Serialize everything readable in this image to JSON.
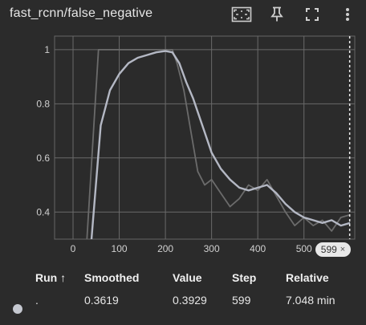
{
  "header": {
    "title": "fast_rcnn/false_negative",
    "icons": [
      "fit-domain-icon",
      "pin-icon",
      "fullscreen-icon",
      "more-vert-icon"
    ]
  },
  "chart_data": {
    "type": "line",
    "x_ticks": [
      0,
      100,
      200,
      300,
      400,
      500
    ],
    "y_ticks": [
      0.4,
      0.6,
      0.8,
      1
    ],
    "y_tick_labels": [
      "0.4",
      "0.6",
      "0.8",
      "1"
    ],
    "xlim": [
      -40,
      610
    ],
    "ylim": [
      0.3,
      1.05
    ],
    "grid": true,
    "series": [
      {
        "color": "#6b6b6b",
        "role": "raw",
        "x": [
          30,
          55,
          80,
          120,
          160,
          200,
          215,
          225,
          240,
          255,
          270,
          285,
          300,
          320,
          340,
          360,
          380,
          400,
          420,
          440,
          460,
          480,
          500,
          520,
          540,
          560,
          580,
          600
        ],
        "y": [
          0.3,
          1.0,
          1.0,
          1.0,
          1.0,
          1.0,
          1.0,
          0.95,
          0.85,
          0.7,
          0.55,
          0.5,
          0.52,
          0.47,
          0.42,
          0.45,
          0.5,
          0.48,
          0.52,
          0.46,
          0.4,
          0.35,
          0.38,
          0.35,
          0.37,
          0.33,
          0.38,
          0.39
        ]
      },
      {
        "color": "#b4b8c4",
        "role": "smoothed",
        "x": [
          40,
          60,
          80,
          100,
          120,
          140,
          160,
          180,
          200,
          215,
          230,
          245,
          260,
          280,
          300,
          320,
          340,
          360,
          380,
          400,
          420,
          440,
          460,
          480,
          500,
          520,
          540,
          560,
          580,
          600
        ],
        "y": [
          0.3,
          0.72,
          0.85,
          0.91,
          0.95,
          0.97,
          0.98,
          0.99,
          0.995,
          0.99,
          0.95,
          0.88,
          0.82,
          0.72,
          0.62,
          0.56,
          0.52,
          0.49,
          0.48,
          0.49,
          0.5,
          0.47,
          0.43,
          0.4,
          0.38,
          0.37,
          0.36,
          0.37,
          0.35,
          0.36
        ]
      }
    ],
    "cursor_step": 599
  },
  "badge": {
    "label": "599",
    "close": "×"
  },
  "table": {
    "headers": {
      "run": "Run ↑",
      "smoothed": "Smoothed",
      "value": "Value",
      "step": "Step",
      "relative": "Relative"
    },
    "rows": [
      {
        "swatch_color": "#c5c8d0",
        "run": ".",
        "smoothed": "0.3619",
        "value": "0.3929",
        "step": "599",
        "relative": "7.048 min"
      }
    ]
  }
}
